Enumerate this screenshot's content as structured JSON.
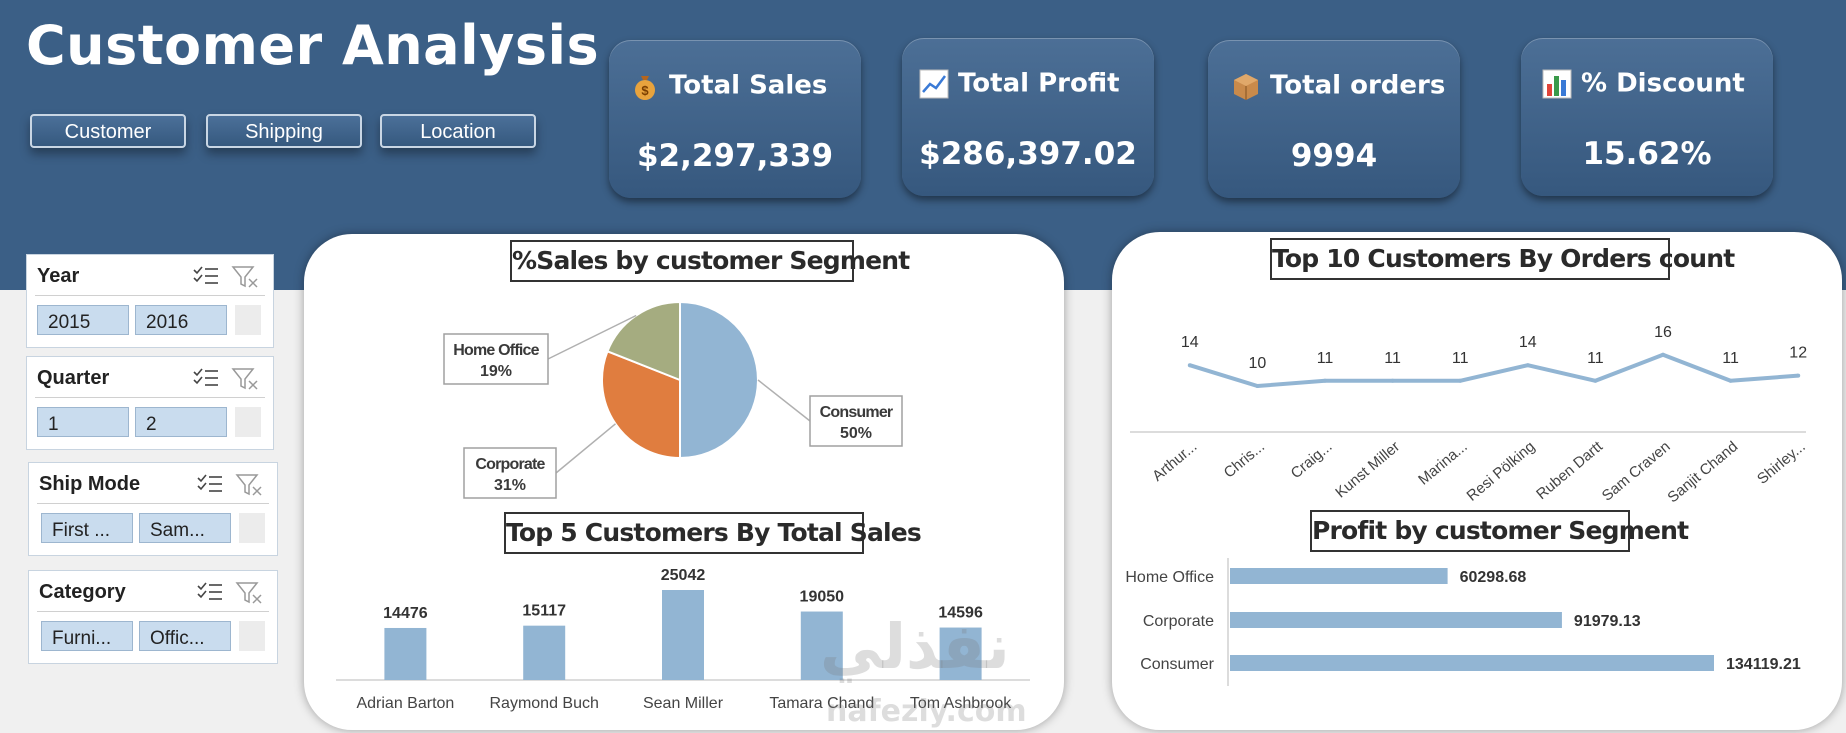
{
  "header": {
    "title": "Customer Analysis"
  },
  "nav": [
    {
      "label": "Customer"
    },
    {
      "label": "Shipping"
    },
    {
      "label": "Location"
    }
  ],
  "kpis": [
    {
      "label": "Total Sales",
      "value": "$2,297,339",
      "icon": "money-bag-icon"
    },
    {
      "label": "Total Profit",
      "value": "$286,397.02",
      "icon": "line-chart-icon"
    },
    {
      "label": "Total orders",
      "value": "9994",
      "icon": "package-icon"
    },
    {
      "label": "%  Discount",
      "value": "15.62%",
      "icon": "bar-chart-icon"
    }
  ],
  "slicers": [
    {
      "title": "Year",
      "items": [
        "2015",
        "2016"
      ]
    },
    {
      "title": "Quarter",
      "items": [
        "1",
        "2"
      ]
    },
    {
      "title": "Ship Mode",
      "items": [
        "First ...",
        "Sam..."
      ]
    },
    {
      "title": "Category",
      "items": [
        "Furni...",
        "Offic..."
      ]
    }
  ],
  "colors": {
    "header": "#3b5f86",
    "bar": "#92b5d3",
    "consumer": "#92b5d3",
    "corporate": "#e07d3f",
    "homeoffice": "#a5ac80"
  },
  "watermark": {
    "arabic": "نفذلي",
    "latin": "nafezly.com"
  },
  "chart_data": [
    {
      "type": "pie",
      "title": "%Sales by customer Segment",
      "slices": [
        {
          "name": "Consumer",
          "value": 50,
          "label": "50%"
        },
        {
          "name": "Corporate",
          "value": 31,
          "label": "31%"
        },
        {
          "name": "Home Office",
          "value": 19,
          "label": "19%"
        }
      ]
    },
    {
      "type": "bar",
      "title": "Top 5 Customers By Total Sales",
      "categories": [
        "Adrian Barton",
        "Raymond Buch",
        "Sean Miller",
        "Tamara Chand",
        "Tom Ashbrook"
      ],
      "values": [
        14476,
        15117,
        25042,
        19050,
        14596
      ],
      "ylim": [
        0,
        25042
      ]
    },
    {
      "type": "line",
      "title": "Top 10 Customers By Orders count",
      "categories": [
        "Arthur...",
        "Chris...",
        "Craig...",
        "Kunst Miller",
        "Marina...",
        "Resi Pölking",
        "Ruben Dartt",
        "Sam Craven",
        "Sanjit Chand",
        "Shirley..."
      ],
      "values": [
        14,
        10,
        11,
        11,
        11,
        14,
        11,
        16,
        11,
        12
      ],
      "ylim": [
        0,
        16
      ]
    },
    {
      "type": "bar",
      "orientation": "horizontal",
      "title": "Profit by customer Segment",
      "categories": [
        "Home Office",
        "Corporate",
        "Consumer"
      ],
      "values": [
        60298.68,
        91979.13,
        134119.21
      ],
      "labels": [
        "60298.68",
        "91979.13",
        "134119.21"
      ],
      "xlim": [
        0,
        134119.21
      ]
    }
  ]
}
